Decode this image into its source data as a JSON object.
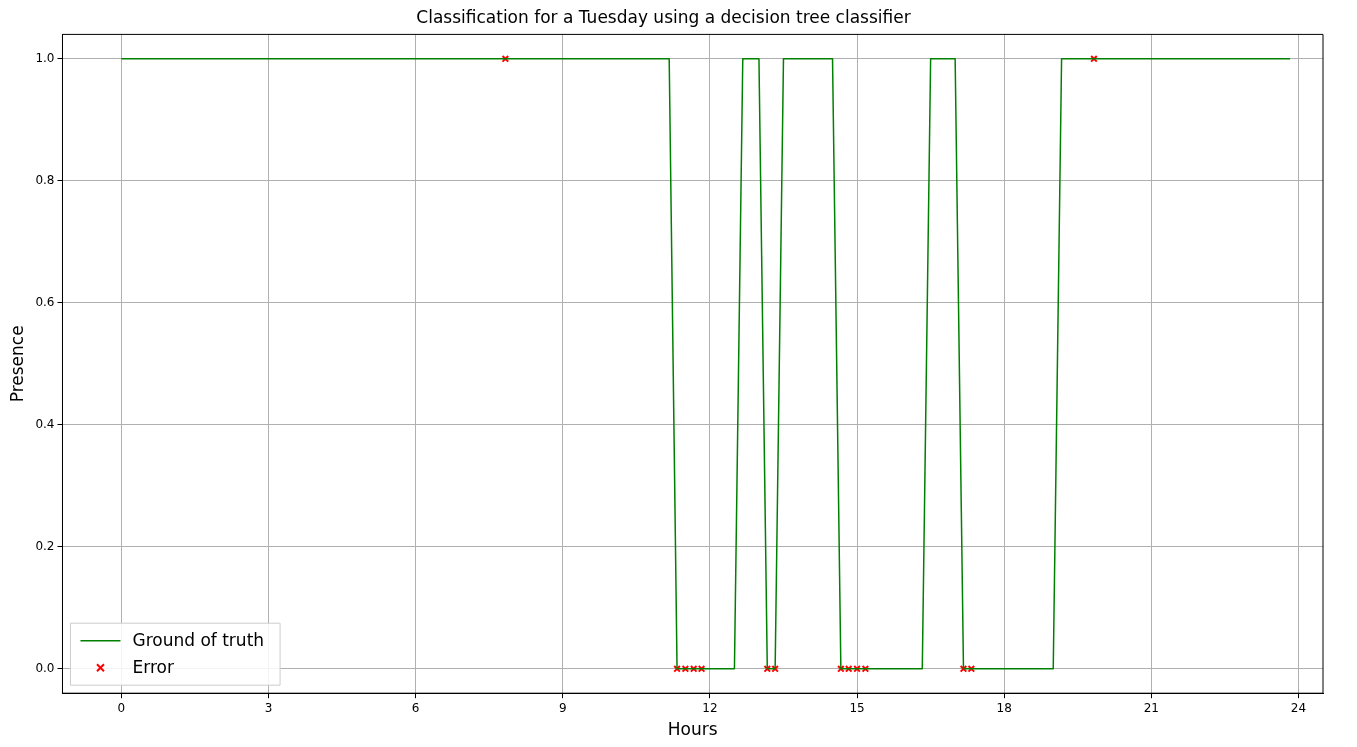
{
  "chart_data": {
    "type": "line",
    "title": "Classification for a Tuesday using a decision tree classifier",
    "xlabel": "Hours",
    "ylabel": "Presence",
    "xlim": [
      -1.2,
      24.5
    ],
    "xticks": [
      0,
      3,
      6,
      9,
      12,
      15,
      18,
      21,
      24
    ],
    "ylim": [
      -0.04,
      1.04
    ],
    "yticks": [
      {
        "value": 0,
        "label": "0.0"
      },
      {
        "value": 0.2,
        "label": "0.2"
      },
      {
        "value": 0.4,
        "label": "0.4"
      },
      {
        "value": 0.6,
        "label": "0.6"
      },
      {
        "value": 0.8,
        "label": "0.8"
      },
      {
        "value": 1,
        "label": "1.0"
      }
    ],
    "grid": true,
    "legend": "bottom left",
    "series": [
      {
        "name": "Ground of truth",
        "color": "#008000",
        "marker": "none",
        "x": [
          0,
          11.17,
          11.33,
          12.5,
          12.67,
          13.0,
          13.17,
          13.33,
          13.5,
          14.5,
          14.67,
          16.33,
          16.5,
          17.0,
          17.17,
          19.0,
          19.17,
          23.83
        ],
        "values": [
          1,
          1,
          0,
          0,
          1,
          1,
          0,
          0,
          1,
          1,
          0,
          0,
          1,
          1,
          0,
          0,
          1,
          1
        ]
      },
      {
        "name": "Error",
        "type": "scatter",
        "color": "#ff0000",
        "marker": "cross",
        "x": [
          7.83,
          11.33,
          11.5,
          11.67,
          11.83,
          13.17,
          13.33,
          14.67,
          14.83,
          15.0,
          15.17,
          17.17,
          17.33,
          19.83
        ],
        "values": [
          1,
          0,
          0,
          0,
          0,
          0,
          0,
          0,
          0,
          0,
          0,
          0,
          0,
          1
        ]
      }
    ]
  }
}
